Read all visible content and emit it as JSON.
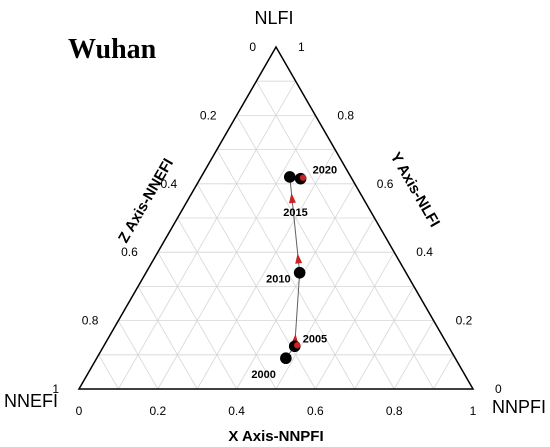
{
  "chart_data": {
    "type": "scatter",
    "title": "Wuhan",
    "corners": {
      "top": "NLFI",
      "left": "NNEFI",
      "right": "NNPFI"
    },
    "axes": {
      "x": {
        "label": "X Axis-NNPFI",
        "ticks": [
          "0",
          "0.2",
          "0.4",
          "0.6",
          "0.8",
          "1"
        ]
      },
      "y": {
        "label": "Y Axis-NLFI",
        "ticks": [
          "0",
          "0.2",
          "0.4",
          "0.6",
          "0.8",
          "1"
        ]
      },
      "z": {
        "label": "Z Axis-NNEFI",
        "ticks": [
          "1",
          "0.8",
          "0.6",
          "0.4",
          "0.2",
          "0"
        ]
      }
    },
    "grid": true,
    "series": [
      {
        "points": [
          {
            "label": "2000",
            "NNPFI": 0.48,
            "NLFI": 0.09
          },
          {
            "label": "2005",
            "NNPFI": 0.485,
            "NLFI": 0.125
          },
          {
            "label": "2010",
            "NNPFI": 0.39,
            "NLFI": 0.34
          },
          {
            "label": "2015",
            "NNPFI": 0.225,
            "NLFI": 0.62
          },
          {
            "label": "2020",
            "NNPFI": 0.255,
            "NLFI": 0.615
          }
        ]
      }
    ]
  }
}
